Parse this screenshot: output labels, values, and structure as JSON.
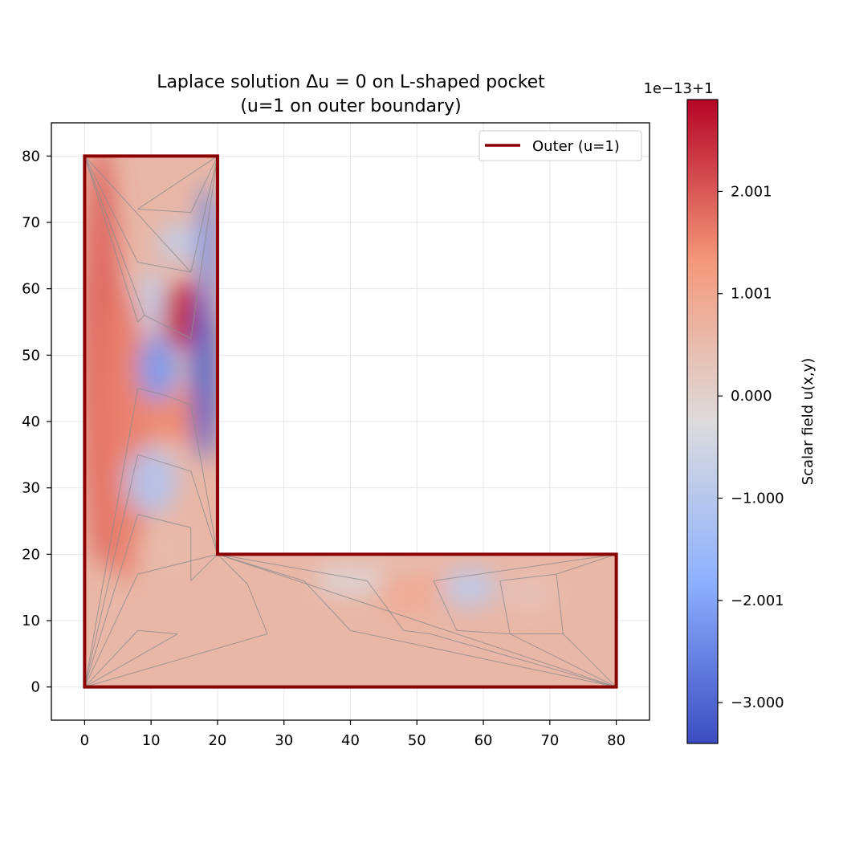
{
  "chart_data": {
    "type": "heatmap",
    "title": "Laplace solution Δu = 0 on L-shaped pocket",
    "subtitle": "(u=1 on outer boundary)",
    "xlabel": "",
    "ylabel": "",
    "xlim": [
      -5,
      85
    ],
    "ylim": [
      -5,
      85
    ],
    "xticks": [
      0,
      10,
      20,
      30,
      40,
      50,
      60,
      70,
      80
    ],
    "yticks": [
      0,
      10,
      20,
      30,
      40,
      50,
      60,
      70,
      80
    ],
    "grid": true,
    "legend": {
      "position": "top-right",
      "entries": [
        {
          "label": "Outer (u=1)",
          "color": "#8b0000"
        }
      ]
    },
    "outer_boundary": [
      [
        0,
        0
      ],
      [
        80,
        0
      ],
      [
        80,
        20
      ],
      [
        20,
        20
      ],
      [
        20,
        80
      ],
      [
        0,
        80
      ],
      [
        0,
        0
      ]
    ],
    "colorbar": {
      "label": "Scalar field u(x,y)",
      "offset_text": "1e−13+1",
      "colormap": "coolwarm",
      "range": [
        -3.4,
        2.9
      ],
      "ticks": [
        2.001,
        1.001,
        0.0,
        -1.0,
        -2.001,
        -3.0
      ],
      "tick_labels": [
        "2.001",
        "1.001",
        "0.000",
        "−1.000",
        "−2.001",
        "−3.000"
      ]
    },
    "field_blobs": [
      {
        "x": 2.5,
        "y": 50,
        "rx": 3,
        "ry": 32,
        "value": 1.9
      },
      {
        "x": 6,
        "y": 38,
        "rx": 4,
        "ry": 22,
        "value": 1.6
      },
      {
        "x": 14,
        "y": 41,
        "rx": 5,
        "ry": 4,
        "value": 1.5
      },
      {
        "x": 15,
        "y": 56,
        "rx": 3.5,
        "ry": 5,
        "value": 2.6
      },
      {
        "x": 18,
        "y": 47,
        "rx": 2,
        "ry": 13,
        "value": -3.1
      },
      {
        "x": 11,
        "y": 48,
        "rx": 3,
        "ry": 5,
        "value": -2.2
      },
      {
        "x": 18.5,
        "y": 66,
        "rx": 1.5,
        "ry": 10,
        "value": -2.4
      },
      {
        "x": 14,
        "y": 67,
        "rx": 3,
        "ry": 3,
        "value": -0.8
      },
      {
        "x": 10,
        "y": 31,
        "rx": 4,
        "ry": 5,
        "value": -1.1
      },
      {
        "x": 12,
        "y": 21,
        "rx": 4,
        "ry": 3,
        "value": 0.5
      },
      {
        "x": 10,
        "y": 58,
        "rx": 2,
        "ry": 5,
        "value": -0.8
      },
      {
        "x": 49,
        "y": 15,
        "rx": 5,
        "ry": 4,
        "value": 0.9
      },
      {
        "x": 58,
        "y": 15,
        "rx": 4,
        "ry": 3,
        "value": -0.9
      },
      {
        "x": 40,
        "y": 16,
        "rx": 5,
        "ry": 2,
        "value": -0.35
      },
      {
        "x": 67,
        "y": 14,
        "rx": 4,
        "ry": 3,
        "value": 0.35
      },
      {
        "x": 44,
        "y": 18.5,
        "rx": 10,
        "ry": 1.5,
        "value": 0.4
      }
    ],
    "mesh_edges": [
      [
        [
          0,
          80
        ],
        [
          8,
          64
        ]
      ],
      [
        [
          8,
          64
        ],
        [
          16,
          62.5
        ]
      ],
      [
        [
          16,
          62.5
        ],
        [
          20,
          80
        ]
      ],
      [
        [
          0,
          80
        ],
        [
          16,
          62.5
        ]
      ],
      [
        [
          8,
          72
        ],
        [
          16,
          71.5
        ]
      ],
      [
        [
          16,
          71.5
        ],
        [
          20,
          80
        ]
      ],
      [
        [
          8,
          72
        ],
        [
          20,
          80
        ]
      ],
      [
        [
          0,
          80
        ],
        [
          8,
          55
        ]
      ],
      [
        [
          8,
          55
        ],
        [
          9,
          56
        ]
      ],
      [
        [
          9,
          56
        ],
        [
          16,
          52.5
        ]
      ],
      [
        [
          16,
          52.5
        ],
        [
          20,
          80
        ]
      ],
      [
        [
          0,
          80
        ],
        [
          9,
          56
        ]
      ],
      [
        [
          0,
          0
        ],
        [
          8,
          45
        ]
      ],
      [
        [
          8,
          45
        ],
        [
          12,
          44
        ]
      ],
      [
        [
          12,
          44
        ],
        [
          16,
          42.5
        ]
      ],
      [
        [
          16,
          42.5
        ],
        [
          20,
          20
        ]
      ],
      [
        [
          0,
          0
        ],
        [
          8,
          35
        ]
      ],
      [
        [
          8,
          35
        ],
        [
          16,
          32.5
        ]
      ],
      [
        [
          16,
          32.5
        ],
        [
          20,
          20
        ]
      ],
      [
        [
          0,
          0
        ],
        [
          8,
          26
        ]
      ],
      [
        [
          8,
          26
        ],
        [
          16,
          24
        ]
      ],
      [
        [
          16,
          24
        ],
        [
          16,
          16
        ]
      ],
      [
        [
          16,
          16
        ],
        [
          20,
          20
        ]
      ],
      [
        [
          0,
          0
        ],
        [
          8,
          17
        ]
      ],
      [
        [
          8,
          17
        ],
        [
          20,
          20
        ]
      ],
      [
        [
          0,
          0
        ],
        [
          8,
          8.5
        ]
      ],
      [
        [
          8,
          8.5
        ],
        [
          14,
          8
        ]
      ],
      [
        [
          14,
          8
        ],
        [
          0,
          0
        ]
      ],
      [
        [
          0,
          0
        ],
        [
          27.5,
          8
        ]
      ],
      [
        [
          27.5,
          8
        ],
        [
          24.5,
          15.5
        ]
      ],
      [
        [
          24.5,
          15.5
        ],
        [
          20,
          20
        ]
      ],
      [
        [
          20,
          20
        ],
        [
          33,
          16
        ]
      ],
      [
        [
          33,
          16
        ],
        [
          40,
          8.5
        ]
      ],
      [
        [
          40,
          8.5
        ],
        [
          80,
          0
        ]
      ],
      [
        [
          20,
          20
        ],
        [
          42.5,
          16
        ]
      ],
      [
        [
          42.5,
          16
        ],
        [
          48,
          8.5
        ]
      ],
      [
        [
          48,
          8.5
        ],
        [
          52,
          8
        ]
      ],
      [
        [
          52,
          8
        ],
        [
          80,
          0
        ]
      ],
      [
        [
          80,
          20
        ],
        [
          52.5,
          16
        ]
      ],
      [
        [
          52.5,
          16
        ],
        [
          56,
          8.5
        ]
      ],
      [
        [
          56,
          8.5
        ],
        [
          64,
          8
        ]
      ],
      [
        [
          64,
          8
        ],
        [
          80,
          0
        ]
      ],
      [
        [
          62.5,
          16
        ],
        [
          64,
          8
        ]
      ],
      [
        [
          64,
          8
        ],
        [
          72,
          8
        ]
      ],
      [
        [
          72,
          8
        ],
        [
          71,
          17
        ]
      ],
      [
        [
          71,
          17
        ],
        [
          62.5,
          16
        ]
      ],
      [
        [
          80,
          20
        ],
        [
          71,
          17
        ]
      ],
      [
        [
          72,
          8
        ],
        [
          80,
          0
        ]
      ],
      [
        [
          20,
          20
        ],
        [
          80,
          0
        ]
      ],
      [
        [
          0,
          0
        ],
        [
          80,
          0
        ]
      ]
    ]
  }
}
